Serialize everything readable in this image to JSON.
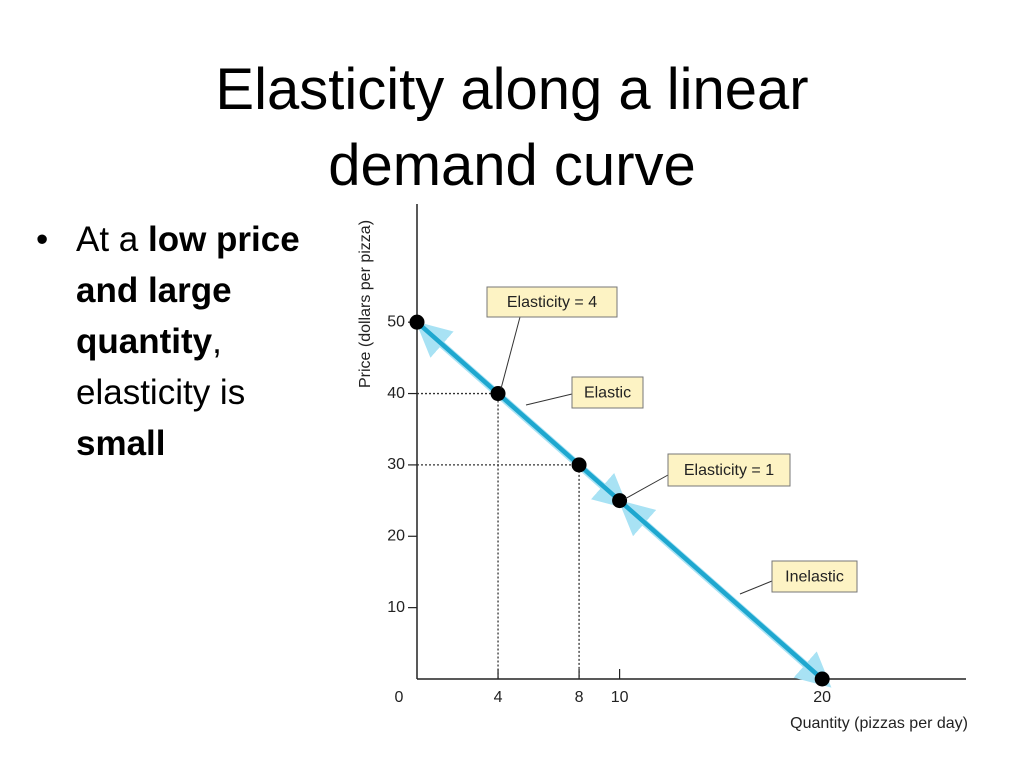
{
  "title_lines": [
    "Elasticity along a linear",
    "demand curve"
  ],
  "bullet": [
    {
      "text": "At a ",
      "bold": false
    },
    {
      "text": "low price and large quantity",
      "bold": true
    },
    {
      "text": ", elasticity is ",
      "bold": false
    },
    {
      "text": "small",
      "bold": true
    }
  ],
  "chart_data": {
    "type": "line",
    "x_label": "Quantity (pizzas per day)",
    "y_label": "Price (dollars per pizza)",
    "series": [
      {
        "name": "Demand",
        "color": "#1ea7cf",
        "x": [
          0,
          4,
          8,
          10,
          20
        ],
        "values": [
          50,
          40,
          30,
          25,
          0
        ]
      }
    ],
    "xlim": [
      0,
      27
    ],
    "ylim": [
      0,
      66
    ],
    "xticks": [
      0,
      4,
      8,
      10,
      20
    ],
    "yticks": [
      10,
      20,
      30,
      40,
      50
    ],
    "annotations": [
      "Elasticity = 4",
      "Elastic",
      "Elasticity = 1",
      "Inelastic"
    ]
  }
}
